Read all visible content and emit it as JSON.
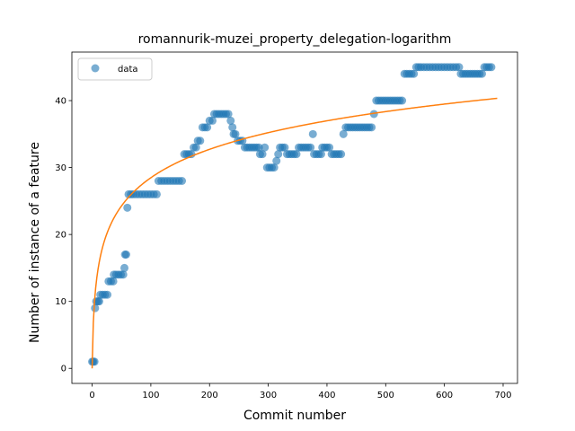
{
  "chart_data": {
    "type": "scatter",
    "title": "romannurik-muzei_property_delegation-logarithm",
    "xlabel": "Commit number",
    "ylabel": "Number of instance of a feature",
    "xlim": [
      -34.5,
      724.5
    ],
    "ylim": [
      -2.25,
      47.25
    ],
    "xticks": [
      0,
      100,
      200,
      300,
      400,
      500,
      600,
      700
    ],
    "yticks": [
      0,
      10,
      20,
      30,
      40
    ],
    "grid": false,
    "legend": {
      "position": "top-left",
      "entries": [
        "data"
      ]
    },
    "colors": {
      "data": "#1f77b4",
      "fit": "#ff7f0e"
    },
    "series": [
      {
        "name": "data",
        "kind": "scatter",
        "points": [
          [
            0,
            1
          ],
          [
            2,
            1
          ],
          [
            4,
            1
          ],
          [
            5,
            9
          ],
          [
            7,
            10
          ],
          [
            10,
            10
          ],
          [
            12,
            10
          ],
          [
            14,
            11
          ],
          [
            18,
            11
          ],
          [
            22,
            11
          ],
          [
            26,
            11
          ],
          [
            28,
            13
          ],
          [
            32,
            13
          ],
          [
            36,
            13
          ],
          [
            37,
            14
          ],
          [
            41,
            14
          ],
          [
            45,
            14
          ],
          [
            49,
            14
          ],
          [
            53,
            14
          ],
          [
            55,
            15
          ],
          [
            56,
            17
          ],
          [
            58,
            17
          ],
          [
            60,
            24
          ],
          [
            62,
            26
          ],
          [
            66,
            26
          ],
          [
            70,
            26
          ],
          [
            75,
            26
          ],
          [
            80,
            26
          ],
          [
            85,
            26
          ],
          [
            90,
            26
          ],
          [
            95,
            26
          ],
          [
            100,
            26
          ],
          [
            105,
            26
          ],
          [
            110,
            26
          ],
          [
            113,
            28
          ],
          [
            118,
            28
          ],
          [
            123,
            28
          ],
          [
            128,
            28
          ],
          [
            133,
            28
          ],
          [
            138,
            28
          ],
          [
            143,
            28
          ],
          [
            148,
            28
          ],
          [
            153,
            28
          ],
          [
            157,
            32
          ],
          [
            161,
            32
          ],
          [
            165,
            32
          ],
          [
            169,
            32
          ],
          [
            173,
            33
          ],
          [
            177,
            33
          ],
          [
            180,
            34
          ],
          [
            184,
            34
          ],
          [
            188,
            36
          ],
          [
            192,
            36
          ],
          [
            196,
            36
          ],
          [
            200,
            37
          ],
          [
            205,
            37
          ],
          [
            208,
            38
          ],
          [
            212,
            38
          ],
          [
            216,
            38
          ],
          [
            220,
            38
          ],
          [
            224,
            38
          ],
          [
            228,
            38
          ],
          [
            232,
            38
          ],
          [
            236,
            37
          ],
          [
            239,
            36
          ],
          [
            241,
            35
          ],
          [
            244,
            35
          ],
          [
            248,
            34
          ],
          [
            252,
            34
          ],
          [
            256,
            34
          ],
          [
            260,
            33
          ],
          [
            264,
            33
          ],
          [
            268,
            33
          ],
          [
            272,
            33
          ],
          [
            276,
            33
          ],
          [
            280,
            33
          ],
          [
            284,
            33
          ],
          [
            286,
            32
          ],
          [
            290,
            32
          ],
          [
            294,
            33
          ],
          [
            298,
            30
          ],
          [
            302,
            30
          ],
          [
            306,
            30
          ],
          [
            310,
            30
          ],
          [
            314,
            31
          ],
          [
            317,
            32
          ],
          [
            320,
            33
          ],
          [
            324,
            33
          ],
          [
            328,
            33
          ],
          [
            332,
            32
          ],
          [
            336,
            32
          ],
          [
            340,
            32
          ],
          [
            344,
            32
          ],
          [
            348,
            32
          ],
          [
            352,
            33
          ],
          [
            356,
            33
          ],
          [
            360,
            33
          ],
          [
            364,
            33
          ],
          [
            368,
            33
          ],
          [
            372,
            33
          ],
          [
            376,
            35
          ],
          [
            378,
            32
          ],
          [
            382,
            32
          ],
          [
            386,
            32
          ],
          [
            390,
            32
          ],
          [
            392,
            33
          ],
          [
            396,
            33
          ],
          [
            400,
            33
          ],
          [
            404,
            33
          ],
          [
            408,
            32
          ],
          [
            412,
            32
          ],
          [
            416,
            32
          ],
          [
            420,
            32
          ],
          [
            424,
            32
          ],
          [
            428,
            35
          ],
          [
            432,
            36
          ],
          [
            436,
            36
          ],
          [
            440,
            36
          ],
          [
            444,
            36
          ],
          [
            448,
            36
          ],
          [
            452,
            36
          ],
          [
            456,
            36
          ],
          [
            460,
            36
          ],
          [
            464,
            36
          ],
          [
            468,
            36
          ],
          [
            472,
            36
          ],
          [
            476,
            36
          ],
          [
            480,
            38
          ],
          [
            484,
            40
          ],
          [
            488,
            40
          ],
          [
            492,
            40
          ],
          [
            496,
            40
          ],
          [
            500,
            40
          ],
          [
            504,
            40
          ],
          [
            508,
            40
          ],
          [
            512,
            40
          ],
          [
            516,
            40
          ],
          [
            520,
            40
          ],
          [
            524,
            40
          ],
          [
            528,
            40
          ],
          [
            532,
            44
          ],
          [
            536,
            44
          ],
          [
            540,
            44
          ],
          [
            544,
            44
          ],
          [
            548,
            44
          ],
          [
            552,
            45
          ],
          [
            556,
            45
          ],
          [
            560,
            45
          ],
          [
            565,
            45
          ],
          [
            570,
            45
          ],
          [
            575,
            45
          ],
          [
            580,
            45
          ],
          [
            585,
            45
          ],
          [
            590,
            45
          ],
          [
            595,
            45
          ],
          [
            600,
            45
          ],
          [
            605,
            45
          ],
          [
            610,
            45
          ],
          [
            615,
            45
          ],
          [
            620,
            45
          ],
          [
            625,
            45
          ],
          [
            628,
            44
          ],
          [
            632,
            44
          ],
          [
            636,
            44
          ],
          [
            640,
            44
          ],
          [
            644,
            44
          ],
          [
            648,
            44
          ],
          [
            652,
            44
          ],
          [
            656,
            44
          ],
          [
            660,
            44
          ],
          [
            664,
            44
          ],
          [
            668,
            45
          ],
          [
            672,
            45
          ],
          [
            676,
            45
          ],
          [
            680,
            45
          ]
        ]
      },
      {
        "name": "",
        "kind": "line",
        "fit": {
          "model": "a*ln(x+1)+b",
          "a": 6.17,
          "b": 0
        },
        "x_range": [
          0,
          690
        ]
      }
    ]
  }
}
